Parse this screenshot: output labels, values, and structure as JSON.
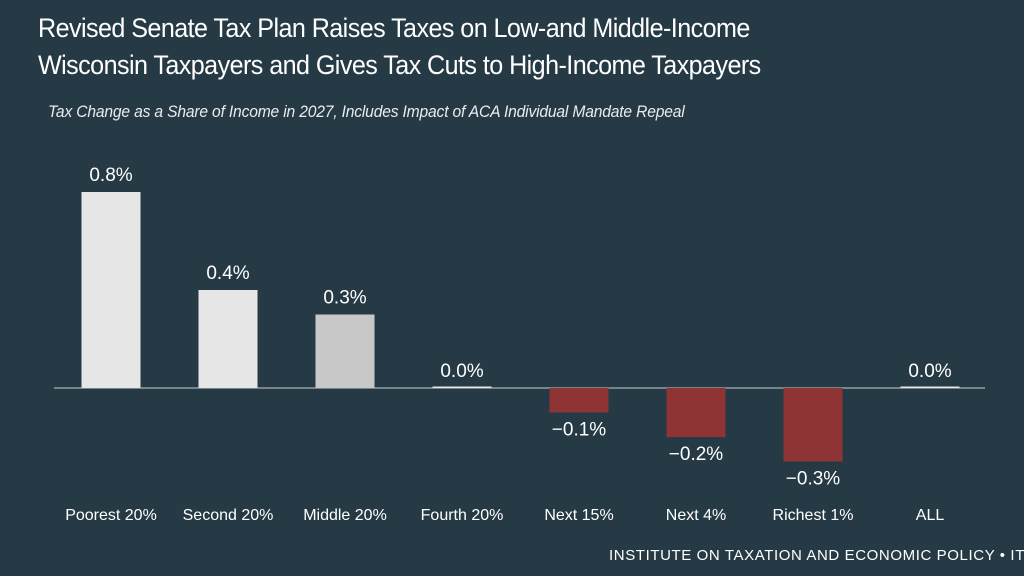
{
  "title_lines": [
    "Revised Senate Tax Plan Raises Taxes on Low-and Middle-Income",
    "Wisconsin Taxpayers and Gives Tax Cuts to High-Income Taxpayers"
  ],
  "subtitle": "Tax Change as a Share of Income in 2027, Includes Impact of ACA Individual Mandate Repeal",
  "footer": "INSTITUTE ON TAXATION AND ECONOMIC POLICY • ITEP.OR",
  "colors": {
    "background": "#263a45",
    "bar_light": "#e6e6e6",
    "bar_mid": "#c8c8c8",
    "bar_negative": "#8e3434",
    "axis": "#c8ced2",
    "text": "#ffffff"
  },
  "chart_data": {
    "type": "bar",
    "title": "Revised Senate Tax Plan Raises Taxes on Low-and Middle-Income Wisconsin Taxpayers and Gives Tax Cuts to High-Income Taxpayers",
    "subtitle": "Tax Change as a Share of Income in 2027, Includes Impact of ACA Individual Mandate Repeal",
    "xlabel": "",
    "ylabel": "Tax Change as a Share of Income",
    "ylim": [
      -0.4,
      0.8
    ],
    "grid": false,
    "categories": [
      "Poorest 20%",
      "Second 20%",
      "Middle 20%",
      "Fourth 20%",
      "Next 15%",
      "Next 4%",
      "Richest 1%",
      "ALL"
    ],
    "values": [
      0.8,
      0.4,
      0.3,
      0.0,
      -0.1,
      -0.2,
      -0.3,
      0.0
    ],
    "value_labels": [
      "0.8%",
      "0.4%",
      "0.3%",
      "0.0%",
      "−0.1%",
      "−0.2%",
      "−0.3%",
      "0.0%"
    ],
    "bar_colors": [
      "#e6e6e6",
      "#e6e6e6",
      "#c8c8c8",
      "#e6e6e6",
      "#8e3434",
      "#8e3434",
      "#8e3434",
      "#e6e6e6"
    ]
  }
}
